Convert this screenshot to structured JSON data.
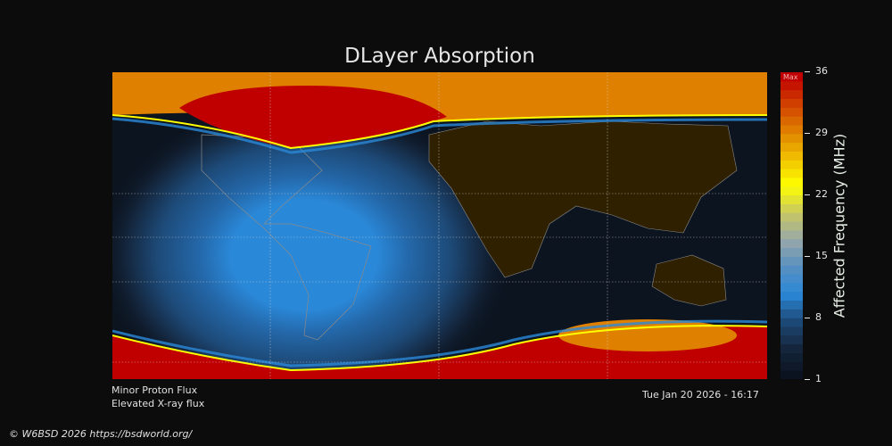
{
  "title": "DLayer Absorption",
  "colorbar": {
    "label": "Affected Frequency (MHz)",
    "max_label": "Max",
    "ticks": [
      "36",
      "29",
      "22",
      "15",
      "8",
      "1"
    ],
    "range": [
      1,
      36
    ],
    "stops": [
      "#0c1320",
      "#14263d",
      "#1d4a78",
      "#2a88d8",
      "#5890c0",
      "#98a8a8",
      "#c8c860",
      "#ffff00",
      "#f0c000",
      "#e08000",
      "#d04000",
      "#c00000"
    ]
  },
  "map": {
    "colors": {
      "night": "#0c1420",
      "land_day": "#2f2100",
      "high": "#c00000",
      "mid": "#e08000",
      "blue": "#2a88d8",
      "coast": "#8a8a8a"
    }
  },
  "notes": {
    "line1": "Minor Proton Flux",
    "line2": "Elevated X-ray flux",
    "timestamp": "Tue Jan 20 2026 - 16:17"
  },
  "footer": "© W6BSD 2026 https://bsdworld.org/"
}
